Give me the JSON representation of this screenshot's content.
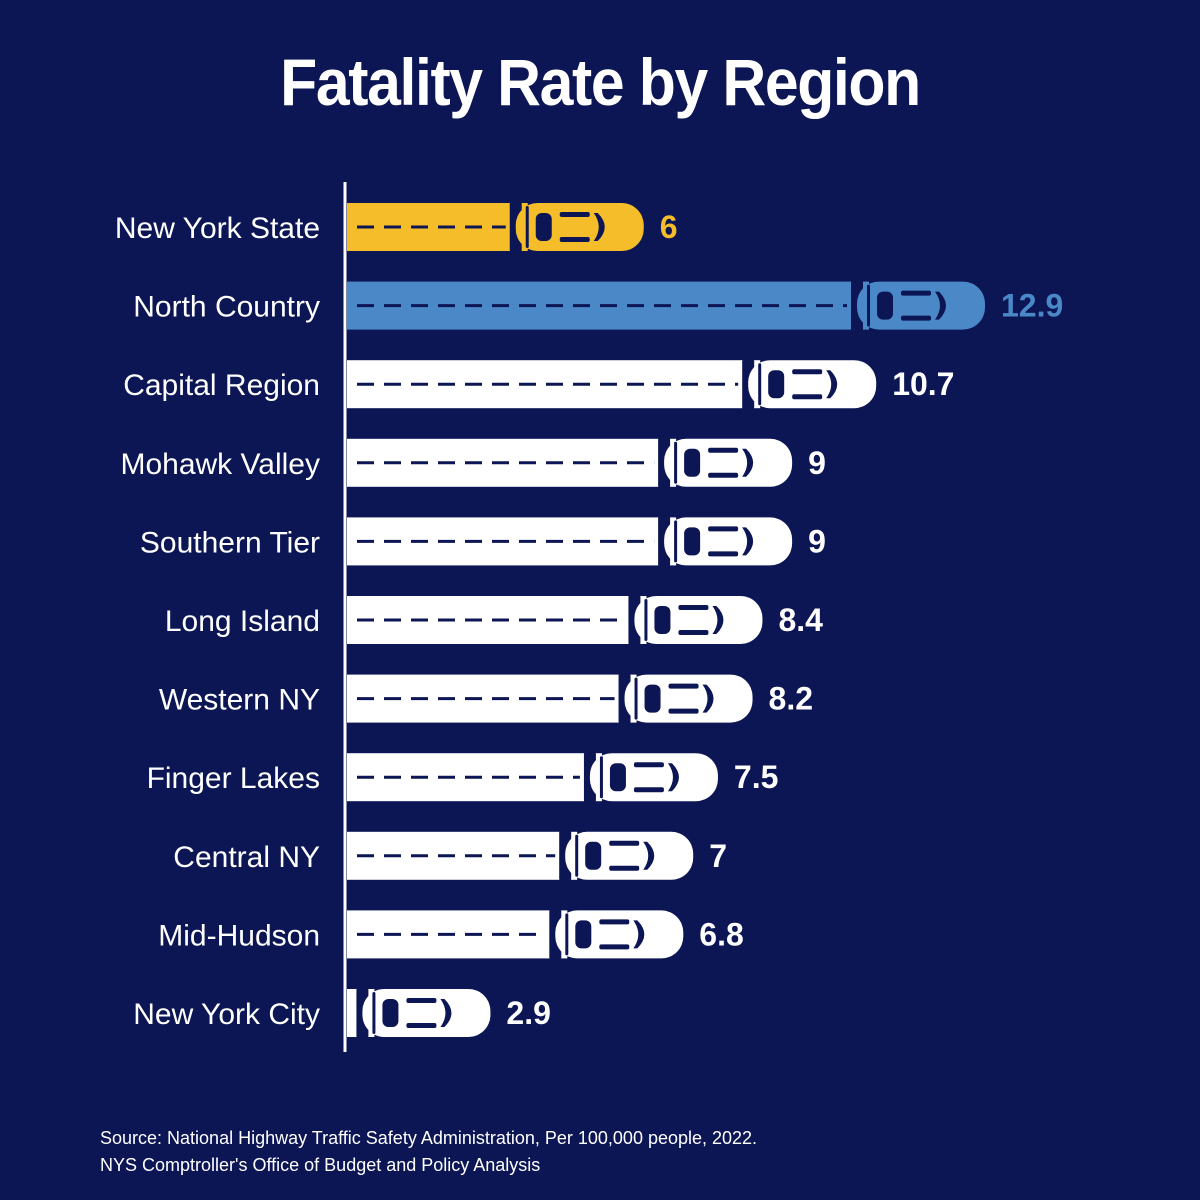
{
  "colors": {
    "background": "#0c1654",
    "highlight_state": "#f6bd2a",
    "highlight_region": "#4a88c8",
    "default_bar": "#ffffff"
  },
  "chart_data": {
    "type": "bar",
    "orientation": "horizontal",
    "title": "Fatality Rate by Region",
    "categories": [
      "New York State",
      "North Country",
      "Capital Region",
      "Mohawk Valley",
      "Southern Tier",
      "Long Island",
      "Western NY",
      "Finger Lakes",
      "Central NY",
      "Mid-Hudson",
      "New York City"
    ],
    "values": [
      6,
      12.9,
      10.7,
      9,
      9,
      8.4,
      8.2,
      7.5,
      7,
      6.8,
      2.9
    ],
    "value_labels": [
      "6",
      "12.9",
      "10.7",
      "9",
      "9",
      "8.4",
      "8.2",
      "7.5",
      "7",
      "6.8",
      "2.9"
    ],
    "bar_colors": [
      "#f6bd2a",
      "#4a88c8",
      "#ffffff",
      "#ffffff",
      "#ffffff",
      "#ffffff",
      "#ffffff",
      "#ffffff",
      "#ffffff",
      "#ffffff",
      "#ffffff"
    ],
    "label_colors": [
      "#f6bd2a",
      "#4a88c8",
      "#ffffff",
      "#ffffff",
      "#ffffff",
      "#ffffff",
      "#ffffff",
      "#ffffff",
      "#ffffff",
      "#ffffff",
      "#ffffff"
    ],
    "xlim": [
      0,
      12.9
    ],
    "grid": false,
    "mark_icon": "car-icon"
  },
  "source": {
    "line1": "Source: National Highway Traffic Safety Administration, Per 100,000 people, 2022.",
    "line2": "NYS Comptroller's Office of Budget and Policy Analysis"
  }
}
